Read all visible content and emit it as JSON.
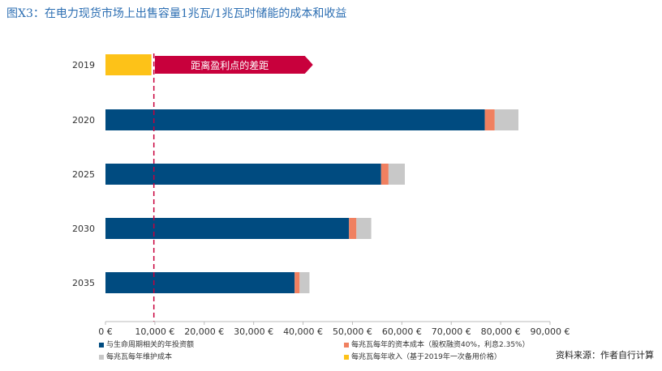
{
  "title": "图X3：在电力现货市场上出售容量1兆瓦/1兆瓦时储能的成本和收益",
  "source": "资料来源：作者自行计算",
  "chart_data": {
    "type": "bar",
    "orientation": "horizontal",
    "stacked": true,
    "categories": [
      "2019",
      "2020",
      "2025",
      "2030",
      "2035"
    ],
    "series": [
      {
        "name": "与生命周期相关的年投资额",
        "color": "#004b80",
        "values": [
          0,
          76800,
          55800,
          49300,
          38300
        ]
      },
      {
        "name": "每兆瓦每年的资本成本（股权融资40%，利息2.35%）",
        "color": "#f08060",
        "values": [
          0,
          2000,
          1500,
          1500,
          1000
        ]
      },
      {
        "name": "每兆瓦每年维护成本",
        "color": "#c8c8c8",
        "values": [
          0,
          4800,
          3300,
          3000,
          2000
        ]
      },
      {
        "name": "每兆瓦每年收入（基于2019年一次备用价格）",
        "color": "#fdc218",
        "values": [
          9300,
          0,
          0,
          0,
          0
        ]
      }
    ],
    "xlim": [
      0,
      90000
    ],
    "xticks": [
      "0 €",
      "10,000 €",
      "20,000 €",
      "30,000 €",
      "40,000 €",
      "50,000 €",
      "60,000 €",
      "70,000 €",
      "80,000 €",
      "90,000 €"
    ],
    "reference_line": {
      "value": 9800,
      "color": "#c8003c",
      "style": "dashed"
    },
    "annotation": {
      "text": "距离盈利点的差距",
      "color": "#c8003c",
      "from": 10000,
      "to": 42000,
      "category": "2019"
    },
    "grid": false,
    "legend_position": "bottom"
  }
}
